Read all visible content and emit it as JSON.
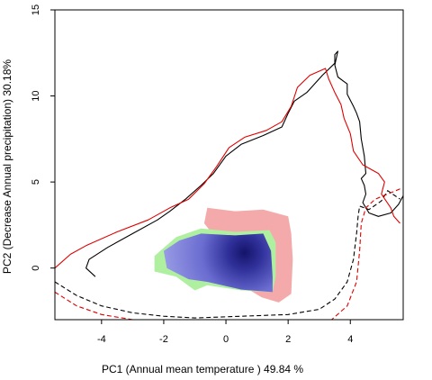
{
  "chart_data": {
    "type": "heatmap",
    "xlabel": "PC1 (Annual mean temperature ) 49.84 %",
    "ylabel": "PC2 (Decrease Annual precipitation) 30.18%",
    "xlim": [
      -5.5,
      5.7
    ],
    "ylim": [
      -3.0,
      15.0
    ],
    "x_ticks": [
      "-4",
      "-2",
      "0",
      "2",
      "4"
    ],
    "x_tick_values": [
      -4,
      -2,
      0,
      2,
      4
    ],
    "y_ticks": [
      "0",
      "5",
      "10",
      "15"
    ],
    "y_tick_values": [
      0,
      5,
      10,
      15
    ],
    "colors": {
      "pink": "#f4aaaa",
      "green": "#aef0a0",
      "density_low": "#a8abec",
      "density_high": "#14146a",
      "red": "#e00000",
      "black": "#000000"
    },
    "regions": [
      {
        "fill": "pink",
        "polygon": [
          [
            -0.6,
            3.5
          ],
          [
            0.3,
            3.3
          ],
          [
            1.2,
            3.4
          ],
          [
            2.0,
            3.0
          ],
          [
            2.1,
            2.0
          ],
          [
            2.15,
            0.5
          ],
          [
            2.1,
            -1.5
          ],
          [
            1.7,
            -2.0
          ],
          [
            1.15,
            -1.7
          ],
          [
            0.5,
            -1.0
          ],
          [
            0.0,
            1.0
          ],
          [
            -0.7,
            2.6
          ]
        ]
      },
      {
        "fill": "green",
        "polygon": [
          [
            -2.3,
            0.7
          ],
          [
            -1.6,
            1.8
          ],
          [
            -0.8,
            2.3
          ],
          [
            0.3,
            2.1
          ],
          [
            1.4,
            2.2
          ],
          [
            1.6,
            1.5
          ],
          [
            1.6,
            -0.5
          ],
          [
            1.5,
            -1.4
          ],
          [
            0.5,
            -1.3
          ],
          [
            -0.6,
            -1.0
          ],
          [
            -1.0,
            -1.3
          ],
          [
            -1.6,
            -0.5
          ],
          [
            -2.3,
            -0.2
          ]
        ]
      }
    ],
    "density": {
      "peak": [
        0.6,
        0.9
      ],
      "polygon": [
        [
          -2.0,
          1.0
        ],
        [
          -1.5,
          1.6
        ],
        [
          -0.8,
          2.0
        ],
        [
          0.3,
          1.9
        ],
        [
          1.2,
          2.0
        ],
        [
          1.45,
          1.0
        ],
        [
          1.5,
          -0.5
        ],
        [
          1.5,
          -1.4
        ],
        [
          0.5,
          -1.25
        ],
        [
          -0.6,
          -0.8
        ],
        [
          -1.2,
          -0.65
        ],
        [
          -1.9,
          0.0
        ]
      ]
    },
    "series": [
      {
        "color": "black",
        "style": "solid",
        "points": [
          [
            -4.2,
            -0.5
          ],
          [
            -4.5,
            0.0
          ],
          [
            -4.4,
            0.5
          ],
          [
            -3.8,
            1.2
          ],
          [
            -3.0,
            2.0
          ],
          [
            -2.2,
            2.8
          ],
          [
            -1.8,
            3.3
          ],
          [
            -1.3,
            4.0
          ],
          [
            -0.8,
            4.8
          ],
          [
            -0.4,
            5.5
          ],
          [
            0.0,
            6.5
          ],
          [
            0.5,
            7.2
          ],
          [
            1.2,
            7.7
          ],
          [
            1.8,
            8.2
          ],
          [
            2.0,
            9.0
          ],
          [
            2.2,
            9.7
          ],
          [
            2.6,
            10.2
          ],
          [
            3.1,
            11.2
          ],
          [
            3.5,
            11.9
          ],
          [
            3.5,
            12.4
          ],
          [
            3.6,
            12.6
          ],
          [
            3.5,
            11.8
          ],
          [
            3.6,
            11.1
          ],
          [
            3.9,
            10.7
          ],
          [
            3.9,
            10.1
          ],
          [
            4.1,
            9.4
          ],
          [
            4.2,
            9.0
          ],
          [
            4.3,
            8.5
          ],
          [
            4.35,
            7.5
          ],
          [
            4.45,
            6.5
          ],
          [
            4.5,
            5.5
          ],
          [
            4.35,
            5.2
          ],
          [
            4.45,
            4.8
          ],
          [
            4.5,
            4.3
          ],
          [
            4.4,
            3.8
          ],
          [
            4.6,
            3.2
          ],
          [
            4.9,
            3.0
          ],
          [
            5.3,
            3.2
          ],
          [
            5.55,
            3.7
          ],
          [
            5.7,
            4.2
          ]
        ]
      },
      {
        "color": "black",
        "style": "dashed",
        "points": [
          [
            -5.5,
            -0.8
          ],
          [
            -4.8,
            -1.6
          ],
          [
            -4.0,
            -2.2
          ],
          [
            -3.0,
            -2.6
          ],
          [
            -2.0,
            -2.8
          ],
          [
            -1.0,
            -2.9
          ],
          [
            0.5,
            -2.8
          ],
          [
            2.0,
            -2.7
          ],
          [
            3.0,
            -2.4
          ],
          [
            3.5,
            -1.8
          ],
          [
            3.9,
            -0.8
          ],
          [
            4.1,
            0.5
          ],
          [
            4.2,
            2.0
          ],
          [
            4.25,
            3.0
          ],
          [
            4.3,
            3.6
          ],
          [
            4.6,
            3.4
          ],
          [
            5.0,
            3.9
          ],
          [
            5.2,
            4.5
          ],
          [
            5.6,
            4.0
          ]
        ]
      },
      {
        "color": "red",
        "style": "solid",
        "points": [
          [
            -5.5,
            0.0
          ],
          [
            -5.0,
            0.8
          ],
          [
            -4.5,
            1.3
          ],
          [
            -3.5,
            2.1
          ],
          [
            -2.5,
            2.8
          ],
          [
            -1.8,
            3.5
          ],
          [
            -1.2,
            4.0
          ],
          [
            -0.7,
            4.9
          ],
          [
            -0.3,
            5.9
          ],
          [
            0.1,
            7.0
          ],
          [
            0.6,
            7.6
          ],
          [
            1.3,
            8.0
          ],
          [
            1.8,
            8.5
          ],
          [
            2.1,
            9.4
          ],
          [
            2.3,
            10.5
          ],
          [
            2.7,
            11.2
          ],
          [
            3.2,
            11.6
          ],
          [
            3.3,
            11.0
          ],
          [
            3.5,
            10.2
          ],
          [
            3.7,
            9.5
          ],
          [
            3.8,
            8.7
          ],
          [
            4.0,
            7.8
          ],
          [
            4.1,
            6.8
          ],
          [
            4.4,
            6.0
          ],
          [
            4.9,
            5.5
          ],
          [
            5.1,
            5.0
          ],
          [
            5.0,
            4.3
          ],
          [
            5.3,
            3.5
          ],
          [
            5.4,
            3.0
          ],
          [
            5.6,
            2.6
          ]
        ]
      },
      {
        "color": "red",
        "style": "dashed",
        "points": [
          [
            -5.5,
            -1.4
          ],
          [
            -4.8,
            -2.2
          ],
          [
            -4.0,
            -2.7
          ],
          [
            -3.0,
            -3.0
          ],
          [
            3.4,
            -3.0
          ],
          [
            3.9,
            -2.2
          ],
          [
            4.2,
            -0.8
          ],
          [
            4.3,
            1.0
          ],
          [
            4.35,
            2.6
          ],
          [
            4.5,
            3.5
          ],
          [
            4.8,
            4.0
          ],
          [
            5.2,
            4.3
          ],
          [
            5.6,
            4.6
          ]
        ]
      }
    ]
  }
}
